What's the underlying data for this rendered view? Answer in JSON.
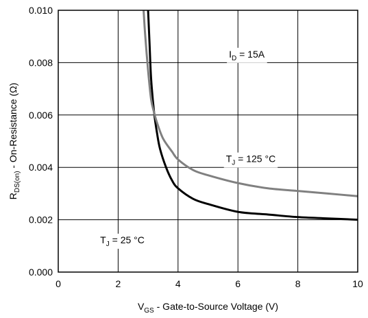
{
  "chart_data": {
    "type": "line",
    "xlabel": {
      "main": "V",
      "sub": "GS",
      "rest": " - Gate-to-Source Voltage (V)"
    },
    "ylabel": {
      "main": "R",
      "sub": "DS(on)",
      "rest": " - On-Resistance (Ω)"
    },
    "xlim": [
      0,
      10
    ],
    "ylim": [
      0,
      0.01
    ],
    "x_ticks": [
      0,
      2,
      4,
      6,
      8,
      10
    ],
    "x_tick_labels": [
      "0",
      "2",
      "4",
      "6",
      "8",
      "10"
    ],
    "y_ticks": [
      0,
      0.002,
      0.004,
      0.006,
      0.008,
      0.01
    ],
    "y_tick_labels": [
      "0.000",
      "0.002",
      "0.004",
      "0.006",
      "0.008",
      "0.010"
    ],
    "grid": true,
    "series": [
      {
        "label": {
          "main": "T",
          "sub": "J",
          "rest": " = 25 °C"
        },
        "color": "#000000",
        "x": [
          3.0,
          3.05,
          3.1,
          3.2,
          3.3,
          3.4,
          3.6,
          3.8,
          4.0,
          4.5,
          5.0,
          6.0,
          7.0,
          8.0,
          9.0,
          10.0
        ],
        "y": [
          0.01,
          0.0087,
          0.0074,
          0.0061,
          0.0053,
          0.0047,
          0.004,
          0.0035,
          0.0032,
          0.0028,
          0.0026,
          0.0023,
          0.0022,
          0.0021,
          0.00205,
          0.002
        ]
      },
      {
        "label": {
          "main": "T",
          "sub": "J",
          "rest": " = 125 °C"
        },
        "color": "#808080",
        "x": [
          2.85,
          2.9,
          3.0,
          3.1,
          3.2,
          3.3,
          3.5,
          3.8,
          4.0,
          4.5,
          5.0,
          6.0,
          7.0,
          8.0,
          9.0,
          10.0
        ],
        "y": [
          0.01,
          0.0091,
          0.0077,
          0.0066,
          0.0061,
          0.0057,
          0.0051,
          0.0046,
          0.0043,
          0.0039,
          0.0037,
          0.0034,
          0.0032,
          0.0031,
          0.003,
          0.0029
        ]
      }
    ],
    "annotations": [
      {
        "main": "I",
        "sub": "D",
        "rest": " = 15A",
        "x": 5.7,
        "y": 0.0082
      },
      {
        "main": "T",
        "sub": "J",
        "rest": " = 125 °C",
        "x": 5.6,
        "y": 0.0042
      },
      {
        "main": "T",
        "sub": "J",
        "rest": " = 25 °C",
        "x": 1.4,
        "y": 0.0011
      }
    ]
  }
}
